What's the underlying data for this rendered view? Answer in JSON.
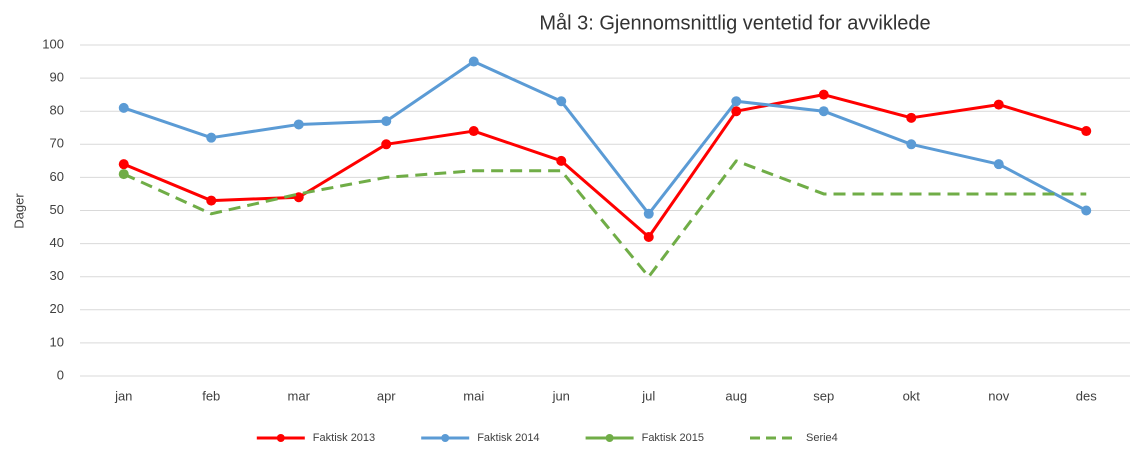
{
  "chart_data": {
    "type": "line",
    "title": "Mål 3: Gjennomsnittlig ventetid for avviklede",
    "y_label": "Dager",
    "categories": [
      "jan",
      "feb",
      "mar",
      "apr",
      "mai",
      "jun",
      "jul",
      "aug",
      "sep",
      "okt",
      "nov",
      "des"
    ],
    "series": [
      {
        "name": "Faktisk 2013",
        "color": "#ff0000",
        "marker": true,
        "dashed": false,
        "values": [
          64,
          53,
          54,
          70,
          74,
          65,
          42,
          80,
          85,
          78,
          82,
          74
        ]
      },
      {
        "name": "Faktisk 2014",
        "color": "#5b9bd5",
        "marker": true,
        "dashed": false,
        "values": [
          81,
          72,
          76,
          77,
          95,
          83,
          49,
          83,
          80,
          70,
          64,
          50
        ]
      },
      {
        "name": "Faktisk 2015",
        "color": "#70ad47",
        "marker": true,
        "dashed": false,
        "values": [
          61,
          null,
          null,
          null,
          null,
          null,
          null,
          null,
          null,
          null,
          null,
          null
        ]
      },
      {
        "name": "Serie4",
        "color": "#70ad47",
        "marker": false,
        "dashed": true,
        "values": [
          61,
          49,
          55,
          60,
          62,
          62,
          30,
          65,
          55,
          55,
          55,
          55
        ]
      }
    ],
    "ylim": [
      0,
      100
    ],
    "yticks": [
      0,
      10,
      20,
      30,
      40,
      50,
      60,
      70,
      80,
      90,
      100
    ],
    "grid": true,
    "legend": "bottom"
  }
}
